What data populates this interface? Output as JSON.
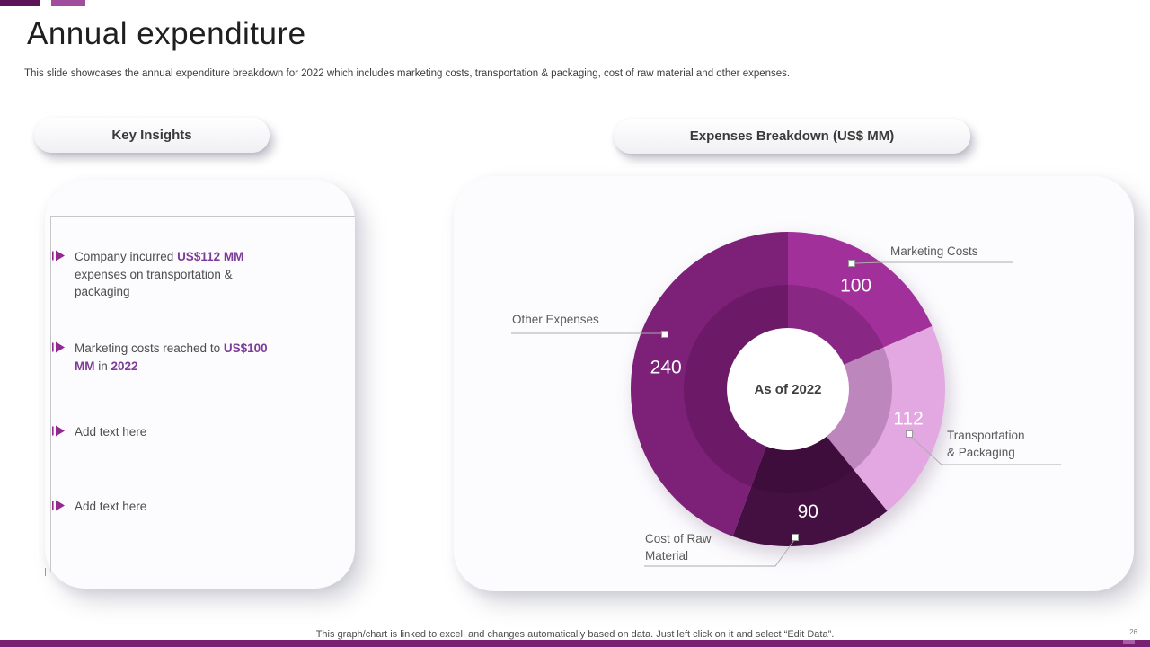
{
  "slide": {
    "title": "Annual expenditure",
    "subtitle": "This slide showcases the annual expenditure breakdown for 2022 which includes marketing costs, transportation & packaging, cost of raw material and other expenses.",
    "footer_note": "This graph/chart is linked to excel, and changes automatically based on data. Just left click on it and select “Edit Data”.",
    "page_number": "26"
  },
  "theme": {
    "accent_dark_purple": "#5e1257",
    "accent_light_purple": "#a14d9e",
    "bottom_bar_purple": "#7a2073",
    "highlight_text_purple": "#7d3c98"
  },
  "insights": {
    "header": "Key Insights",
    "items": [
      {
        "parts": [
          {
            "t": "Company incurred ",
            "h": false
          },
          {
            "t": "US$112 MM",
            "h": true
          },
          {
            "t": " expenses on transportation & packaging",
            "h": false
          }
        ]
      },
      {
        "parts": [
          {
            "t": "Marketing costs reached to ",
            "h": false
          },
          {
            "t": "US$100 MM",
            "h": true
          },
          {
            "t": " in ",
            "h": false
          },
          {
            "t": "2022",
            "h": true
          }
        ]
      },
      {
        "parts": [
          {
            "t": "Add text here",
            "h": false
          }
        ]
      },
      {
        "parts": [
          {
            "t": "Add text here",
            "h": false
          }
        ]
      }
    ]
  },
  "chart_panel": {
    "header": "Expenses Breakdown (US$ MM)"
  },
  "chart_data": {
    "type": "pie",
    "title": "Expenses Breakdown (US$ MM)",
    "units": "US$ MM",
    "center_label": "As of 2022",
    "start_angle_deg": 0,
    "direction": "clockwise",
    "legend": "none",
    "label_style": "callout-lines",
    "segments": [
      {
        "label": "Marketing Costs",
        "value": 100,
        "color": "#a1309b"
      },
      {
        "label": "Transportation & Packaging",
        "value": 112,
        "color": "#e3a7e1"
      },
      {
        "label": "Cost of Raw Material",
        "value": 90,
        "color": "#441041"
      },
      {
        "label": "Other Expenses",
        "value": 240,
        "color": "#7d2077"
      }
    ]
  }
}
